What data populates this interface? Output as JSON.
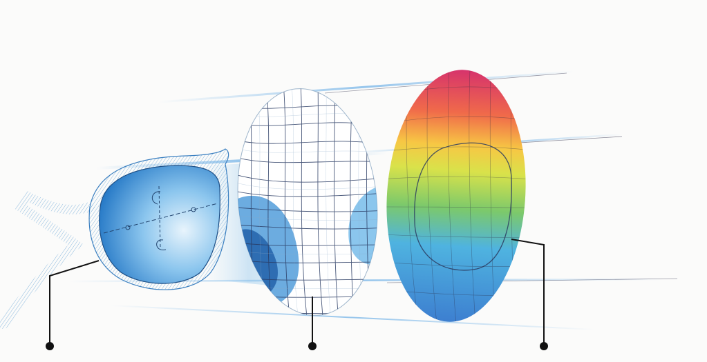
{
  "diagram": {
    "kind": "lens-technology-illustration",
    "elements": [
      {
        "name": "spectacle-frame",
        "callout": true
      },
      {
        "name": "lens-surface-mesh",
        "callout": true
      },
      {
        "name": "power-map-lens",
        "callout": true
      }
    ],
    "colors": {
      "background": "#fbfbfa",
      "frame_stroke": "#3a7fc0",
      "lens_blue": "#2f8fd8",
      "mesh_line": "#2a3b63",
      "callout": "#111111",
      "gradient_stops": [
        "#d6336c",
        "#f06a4a",
        "#f7c744",
        "#d9e24a",
        "#7cc96b",
        "#4fb3e0",
        "#3d7fd0"
      ]
    }
  }
}
